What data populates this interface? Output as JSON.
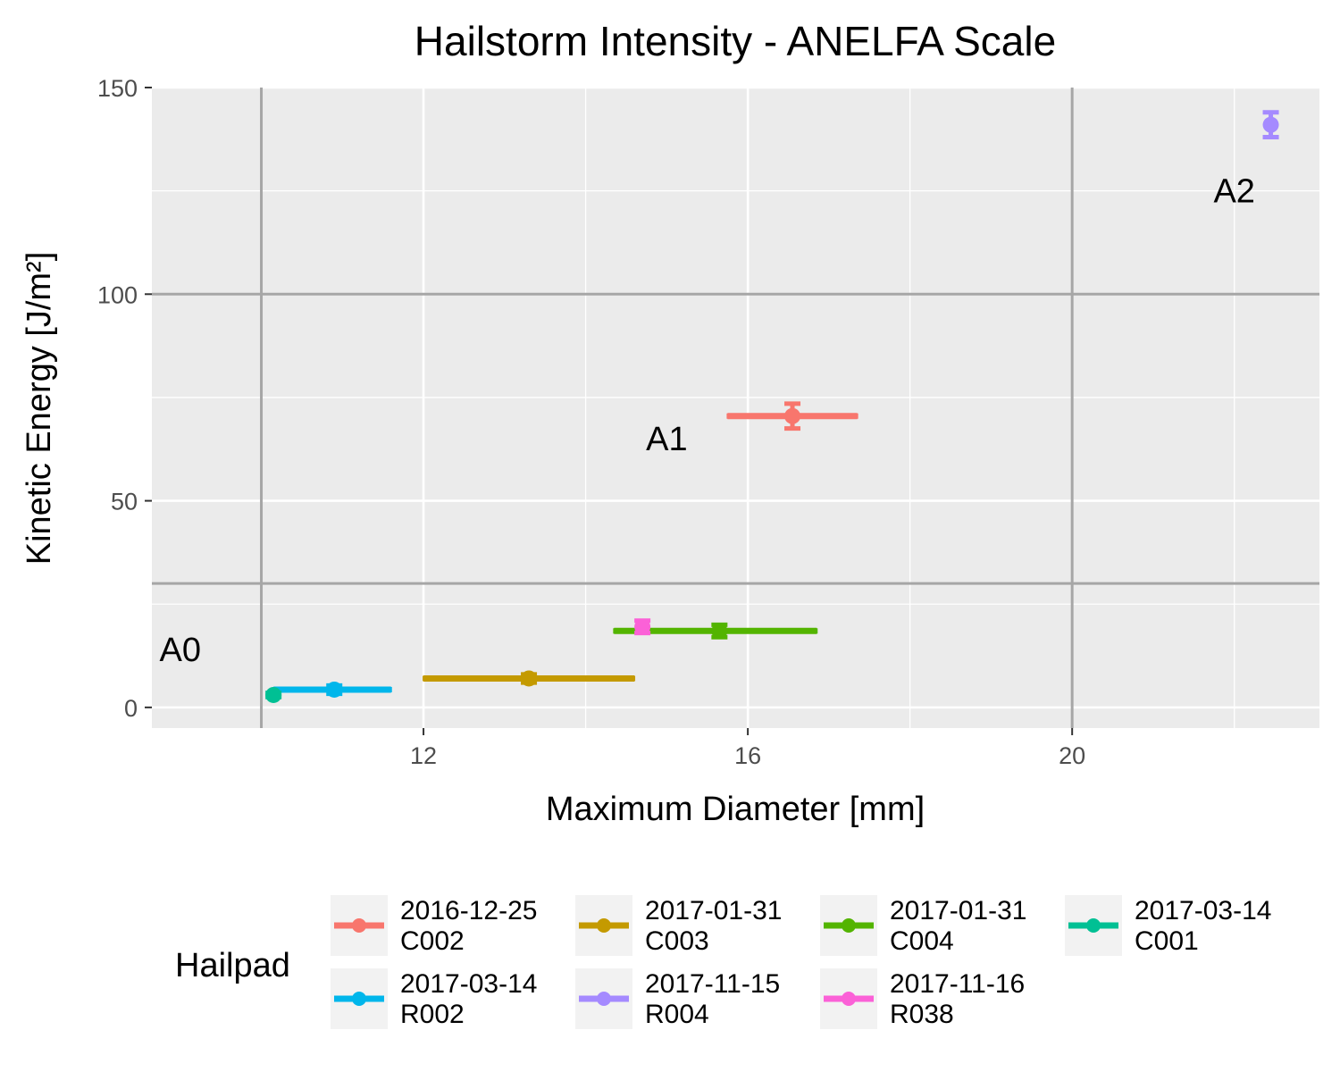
{
  "chart_data": {
    "type": "scatter",
    "title": "Hailstorm Intensity - ANELFA Scale",
    "xlabel": "Maximum Diameter [mm]",
    "ylabel": "Kinetic Energy [J/m²]",
    "xlim": [
      8.65,
      23.05
    ],
    "ylim": [
      -5,
      150
    ],
    "x_ticks": [
      12,
      16,
      20
    ],
    "x_minor_ticks": [
      10,
      14,
      18,
      22
    ],
    "y_ticks": [
      0,
      50,
      100,
      150
    ],
    "y_minor_ticks": [
      25,
      75,
      125
    ],
    "grid": true,
    "legend_position": "bottom",
    "legend_title": "Hailpad",
    "thresholds": {
      "x": [
        10,
        20
      ],
      "y": [
        30,
        100
      ]
    },
    "zone_labels": [
      {
        "text": "A0",
        "x": 9.0,
        "y": 14
      },
      {
        "text": "A1",
        "x": 15.0,
        "y": 65
      },
      {
        "text": "A2",
        "x": 22.0,
        "y": 125
      }
    ],
    "series": [
      {
        "name": "2016-12-25\nC002",
        "color": "#F8766D",
        "x": 16.55,
        "x_err": [
          15.75,
          17.35
        ],
        "y": 70.5,
        "y_err": [
          67.5,
          73.5
        ]
      },
      {
        "name": "2017-01-31\nC003",
        "color": "#C49A00",
        "x": 13.3,
        "x_err": [
          12.0,
          14.6
        ],
        "y": 7.0,
        "y_err": [
          6.0,
          8.0
        ]
      },
      {
        "name": "2017-01-31\nC004",
        "color": "#53B400",
        "x": 15.65,
        "x_err": [
          14.35,
          16.85
        ],
        "y": 18.5,
        "y_err": [
          17.0,
          20.0
        ]
      },
      {
        "name": "2017-03-14\nC001",
        "color": "#00C094",
        "x": 10.15,
        "x_err": [
          10.1,
          10.2
        ],
        "y": 3.0,
        "y_err": [
          2.5,
          3.5
        ]
      },
      {
        "name": "2017-03-14\nR002",
        "color": "#00B6EB",
        "x": 10.9,
        "x_err": [
          10.15,
          11.6
        ],
        "y": 4.3,
        "y_err": [
          3.3,
          5.3
        ]
      },
      {
        "name": "2017-11-15\nR004",
        "color": "#A58AFF",
        "x": 22.45,
        "x_err": [
          22.42,
          22.48
        ],
        "y": 141,
        "y_err": [
          138,
          144
        ]
      },
      {
        "name": "2017-11-16\nR038",
        "color": "#FB61D7",
        "x": 14.7,
        "x_err": [
          14.65,
          14.75
        ],
        "y": 19.5,
        "y_err": [
          18.0,
          21.0
        ]
      }
    ],
    "legend_order": [
      0,
      1,
      2,
      3,
      4,
      5,
      6
    ]
  }
}
